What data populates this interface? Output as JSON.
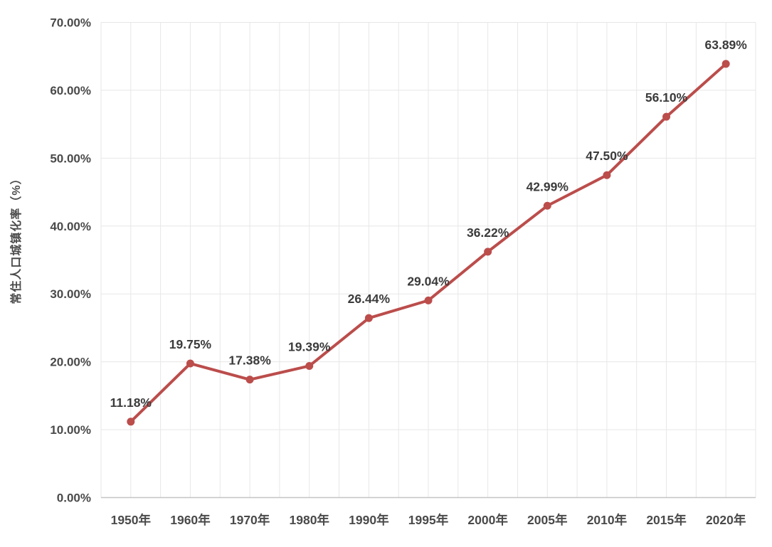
{
  "chart_data": {
    "type": "line",
    "title": "",
    "xlabel": "",
    "ylabel": "常住人口城镇化率（%）",
    "categories": [
      "1950年",
      "1960年",
      "1970年",
      "1980年",
      "1990年",
      "1995年",
      "2000年",
      "2005年",
      "2010年",
      "2015年",
      "2020年"
    ],
    "series": [
      {
        "name": "常住人口城镇化率",
        "values": [
          11.18,
          19.75,
          17.38,
          19.39,
          26.44,
          29.04,
          36.22,
          42.99,
          47.5,
          56.1,
          63.89
        ],
        "data_labels": [
          "11.18%",
          "19.75%",
          "17.38%",
          "19.39%",
          "26.44%",
          "29.04%",
          "36.22%",
          "42.99%",
          "47.50%",
          "56.10%",
          "63.89%"
        ]
      }
    ],
    "ylim": [
      0,
      70
    ],
    "ytick_step": 10,
    "ytick_labels": [
      "0.00%",
      "10.00%",
      "20.00%",
      "30.00%",
      "40.00%",
      "50.00%",
      "60.00%",
      "70.00%"
    ],
    "grid": "both",
    "legend_position": "none",
    "colors": {
      "series_line": "#bb4d4b",
      "marker_fill": "#bb4d4b",
      "data_label_text": "#3b3b3b",
      "axis_tick_text": "#4a4a4a",
      "gridline": "#e7e7e7",
      "axis_line": "#c4c4c4",
      "background": "#ffffff"
    }
  }
}
